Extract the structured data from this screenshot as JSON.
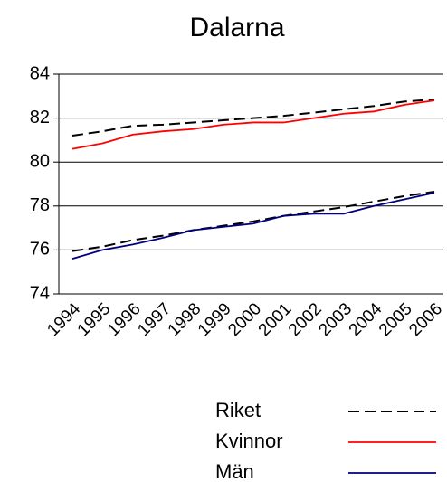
{
  "chart_data": {
    "type": "line",
    "title": "Dalarna",
    "categories": [
      "1994",
      "1995",
      "1996",
      "1997",
      "1998",
      "1999",
      "2000",
      "2001",
      "2002",
      "2003",
      "2004",
      "2005",
      "2006"
    ],
    "series": [
      {
        "name": "Riket",
        "color": "#000000",
        "dashed": true,
        "values": [
          81.2,
          81.4,
          81.65,
          81.7,
          81.8,
          81.9,
          82.0,
          82.1,
          82.25,
          82.4,
          82.55,
          82.75,
          82.85
        ]
      },
      {
        "color": "#000000",
        "dashed": true,
        "values": [
          75.95,
          76.15,
          76.45,
          76.65,
          76.9,
          77.1,
          77.3,
          77.55,
          77.75,
          77.95,
          78.2,
          78.45,
          78.65
        ]
      },
      {
        "name": "Kvinnor",
        "color": "#ff0000",
        "values": [
          80.6,
          80.85,
          81.25,
          81.4,
          81.5,
          81.7,
          81.8,
          81.8,
          82.0,
          82.2,
          82.3,
          82.6,
          82.8
        ]
      },
      {
        "name": "Män",
        "color": "#000080",
        "values": [
          75.6,
          76.0,
          76.25,
          76.55,
          76.9,
          77.05,
          77.2,
          77.55,
          77.65,
          77.65,
          78.0,
          78.3,
          78.6
        ]
      }
    ],
    "ylim": [
      74,
      84
    ],
    "yticks": [
      74,
      76,
      78,
      80,
      82,
      84
    ],
    "grid": true
  }
}
